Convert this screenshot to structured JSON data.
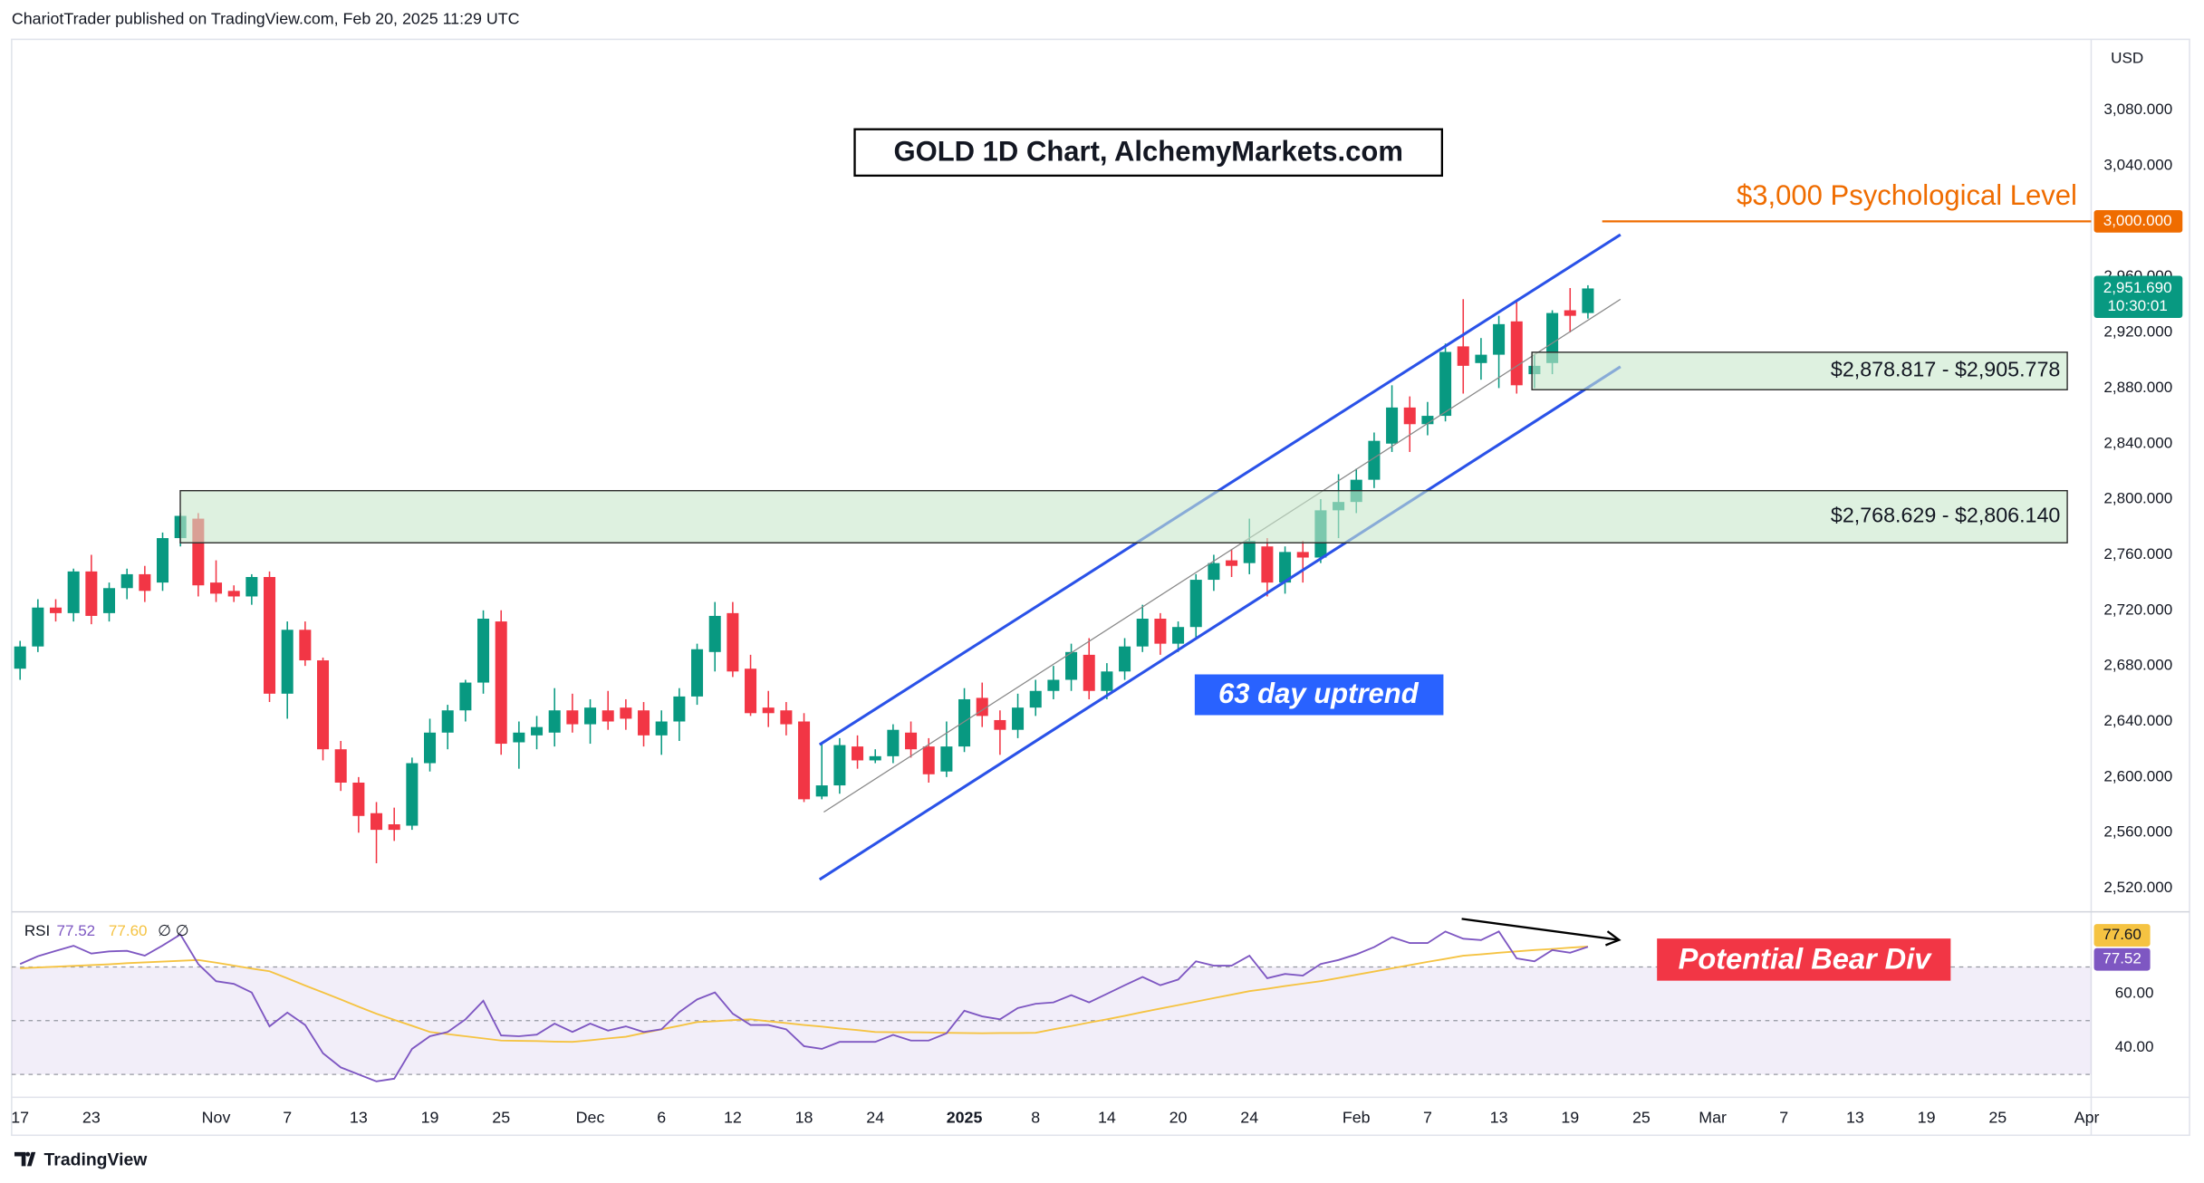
{
  "header": "ChariotTrader published on TradingView.com, Feb 20, 2025 11:29 UTC",
  "footer": "TradingView",
  "chart_data": [
    {
      "type": "candlestick",
      "title": "GOLD 1D Chart, AlchemyMarkets.com",
      "currency": "USD",
      "up_color": "#089981",
      "down_color": "#f23645",
      "categories": [
        "17",
        null,
        null,
        null,
        "23",
        null,
        null,
        null,
        null,
        null,
        null,
        "Nov",
        null,
        null,
        null,
        "7",
        null,
        null,
        null,
        "13",
        null,
        null,
        null,
        "19",
        null,
        null,
        null,
        "25",
        null,
        null,
        null,
        null,
        "Dec",
        null,
        null,
        null,
        "6",
        null,
        null,
        null,
        "12",
        null,
        null,
        null,
        "18",
        null,
        null,
        null,
        "24",
        null,
        null,
        null,
        null,
        "2025",
        null,
        null,
        null,
        "8",
        null,
        null,
        null,
        "14",
        null,
        null,
        null,
        "20",
        null,
        null,
        null,
        "24",
        null,
        null,
        null,
        null,
        null,
        "Feb",
        null,
        null,
        null,
        "7",
        null,
        null,
        null,
        "13",
        null,
        null,
        null,
        "19",
        null,
        null,
        null,
        "25",
        null,
        null,
        null,
        "Mar",
        null,
        null,
        null,
        "7",
        null,
        null,
        null,
        "13",
        null,
        null,
        null,
        "19",
        null,
        null,
        null,
        "25",
        null,
        null,
        null,
        null,
        "Apr"
      ],
      "open": [
        2678,
        2694,
        2722,
        2718,
        2748,
        2718,
        2736,
        2746,
        2740,
        2772,
        2786,
        2740,
        2734,
        2730,
        2744,
        2660,
        2706,
        2684,
        2620,
        2596,
        2574,
        2566,
        2565,
        2610,
        2632,
        2648,
        2668,
        2712,
        2625,
        2630,
        2632,
        2648,
        2638,
        2648,
        2650,
        2648,
        2630,
        2640,
        2658,
        2690,
        2718,
        2678,
        2650,
        2648,
        2640,
        2586,
        2594,
        2622,
        2612,
        2615,
        2632,
        2622,
        2604,
        2622,
        2657,
        2641,
        2634,
        2650,
        2662,
        2670,
        2688,
        2662,
        2676,
        2694,
        2714,
        2696,
        2708,
        2742,
        2756,
        2754,
        2766,
        2740,
        2762,
        2758,
        2792,
        2798,
        2814,
        2840,
        2866,
        2854,
        2860,
        2910,
        2898,
        2904,
        2928,
        2890,
        2898,
        2936,
        2934,
        null,
        null,
        null,
        null,
        null,
        null,
        null,
        null,
        null,
        null,
        null,
        null,
        null,
        null,
        null,
        null,
        null,
        null,
        null,
        null,
        null,
        null,
        null,
        null,
        null,
        null,
        null,
        null
      ],
      "high": [
        2698,
        2728,
        2728,
        2750,
        2760,
        2740,
        2750,
        2752,
        2776,
        2790,
        2790,
        2756,
        2738,
        2746,
        2748,
        2712,
        2712,
        2686,
        2626,
        2600,
        2582,
        2578,
        2614,
        2642,
        2652,
        2670,
        2720,
        2720,
        2640,
        2644,
        2664,
        2660,
        2656,
        2662,
        2656,
        2654,
        2648,
        2664,
        2696,
        2726,
        2726,
        2688,
        2662,
        2654,
        2646,
        2624,
        2628,
        2630,
        2620,
        2638,
        2640,
        2628,
        2640,
        2664,
        2668,
        2648,
        2660,
        2670,
        2680,
        2696,
        2700,
        2682,
        2700,
        2724,
        2718,
        2712,
        2746,
        2760,
        2764,
        2786,
        2772,
        2766,
        2770,
        2800,
        2818,
        2822,
        2848,
        2882,
        2874,
        2870,
        2912,
        2944,
        2916,
        2932,
        2942,
        2904,
        2936,
        2952,
        2954,
        null,
        null,
        null,
        null,
        null,
        null,
        null,
        null,
        null,
        null,
        null,
        null,
        null,
        null,
        null,
        null,
        null,
        null,
        null,
        null,
        null,
        null,
        null,
        null,
        null,
        null,
        null,
        null
      ],
      "low": [
        2670,
        2690,
        2712,
        2712,
        2710,
        2712,
        2728,
        2726,
        2734,
        2766,
        2730,
        2726,
        2726,
        2724,
        2654,
        2642,
        2680,
        2612,
        2590,
        2560,
        2538,
        2554,
        2562,
        2604,
        2620,
        2640,
        2660,
        2616,
        2606,
        2620,
        2622,
        2632,
        2624,
        2634,
        2634,
        2622,
        2616,
        2626,
        2652,
        2676,
        2672,
        2644,
        2636,
        2630,
        2582,
        2584,
        2588,
        2606,
        2610,
        2610,
        2614,
        2596,
        2600,
        2618,
        2636,
        2616,
        2628,
        2644,
        2656,
        2662,
        2656,
        2656,
        2670,
        2690,
        2688,
        2690,
        2700,
        2734,
        2744,
        2746,
        2730,
        2732,
        2740,
        2754,
        2772,
        2790,
        2808,
        2834,
        2834,
        2846,
        2856,
        2876,
        2886,
        2880,
        2876,
        2880,
        2890,
        2920,
        2930,
        null,
        null,
        null,
        null,
        null,
        null,
        null,
        null,
        null,
        null,
        null,
        null,
        null,
        null,
        null,
        null,
        null,
        null,
        null,
        null,
        null,
        null,
        null,
        null,
        null,
        null,
        null,
        null
      ],
      "close": [
        2694,
        2722,
        2718,
        2748,
        2716,
        2736,
        2746,
        2734,
        2772,
        2788,
        2738,
        2732,
        2730,
        2744,
        2660,
        2706,
        2684,
        2620,
        2596,
        2572,
        2562,
        2562,
        2610,
        2632,
        2648,
        2668,
        2714,
        2624,
        2632,
        2636,
        2648,
        2638,
        2650,
        2640,
        2642,
        2630,
        2640,
        2658,
        2692,
        2716,
        2676,
        2646,
        2646,
        2638,
        2584,
        2594,
        2623,
        2612,
        2615,
        2634,
        2620,
        2602,
        2622,
        2656,
        2644,
        2634,
        2650,
        2662,
        2670,
        2690,
        2662,
        2676,
        2694,
        2714,
        2696,
        2708,
        2742,
        2754,
        2752,
        2770,
        2740,
        2762,
        2758,
        2792,
        2798,
        2814,
        2842,
        2866,
        2854,
        2860,
        2906,
        2896,
        2904,
        2926,
        2882,
        2896,
        2934,
        2932,
        2951.69,
        null,
        null,
        null,
        null,
        null,
        null,
        null,
        null,
        null,
        null,
        null,
        null,
        null,
        null,
        null,
        null,
        null,
        null,
        null,
        null,
        null,
        null,
        null,
        null,
        null,
        null,
        null,
        null
      ],
      "ylim": [
        2504,
        3131
      ],
      "yticks": [
        {
          "value": 2520,
          "label": "2,520.000"
        },
        {
          "value": 2560,
          "label": "2,560.000"
        },
        {
          "value": 2600,
          "label": "2,600.000"
        },
        {
          "value": 2640,
          "label": "2,640.000"
        },
        {
          "value": 2680,
          "label": "2,680.000"
        },
        {
          "value": 2720,
          "label": "2,720.000"
        },
        {
          "value": 2760,
          "label": "2,760.000"
        },
        {
          "value": 2800,
          "label": "2,800.000"
        },
        {
          "value": 2840,
          "label": "2,840.000"
        },
        {
          "value": 2880,
          "label": "2,880.000"
        },
        {
          "value": 2920,
          "label": "2,920.000"
        },
        {
          "value": 2960,
          "label": "2,960.000"
        },
        {
          "value": 3040,
          "label": "3,040.000"
        },
        {
          "value": 3080,
          "label": "3,080.000"
        }
      ],
      "grid": false,
      "last_price": {
        "value": 2951.69,
        "label": "2,951.690",
        "countdown": "10:30:01"
      },
      "level": {
        "value": 3000,
        "label": "3,000.000",
        "text": "$3,000 Psychological Level",
        "color": "#ef6c00"
      },
      "zones": [
        {
          "low": 2768.629,
          "high": 2806.14,
          "label": "$2,768.629 - $2,806.140"
        },
        {
          "low": 2878.817,
          "high": 2905.778,
          "label": "$2,878.817 - $2,905.778"
        }
      ],
      "trend_label": "63 day uptrend"
    },
    {
      "type": "line",
      "series": [
        {
          "name": "RSI",
          "color": "#7e57c2",
          "last_label": "77.52",
          "values": [
            71.1,
            74,
            76,
            77.9,
            75,
            75.8,
            76,
            74.2,
            78,
            82.1,
            71.1,
            64.7,
            63.7,
            60.5,
            47.9,
            53,
            48.4,
            37.9,
            32.6,
            30,
            27.4,
            28.4,
            39.5,
            44.2,
            45.8,
            50.5,
            57.4,
            44.5,
            44.2,
            44.8,
            48.9,
            45.8,
            48.9,
            46.3,
            47.9,
            45.8,
            46.8,
            53.2,
            57.9,
            60.5,
            52.6,
            48.4,
            48.4,
            46.8,
            40.5,
            39.5,
            42.1,
            42.1,
            42.1,
            44.7,
            42.6,
            42.6,
            45.3,
            53.7,
            51.6,
            50.5,
            54.7,
            56.3,
            56.8,
            59.5,
            56.8,
            60,
            63.2,
            66.3,
            63.2,
            65.3,
            72.1,
            70.5,
            70.5,
            74.2,
            65.8,
            67.4,
            66.8,
            71.1,
            72.6,
            74.7,
            77.4,
            81.1,
            78.9,
            78.9,
            83.2,
            80.5,
            80,
            83.2,
            73.2,
            72.1,
            76.3,
            75.3,
            77.52,
            null,
            null,
            null,
            null,
            null,
            null,
            null,
            null,
            null,
            null,
            null,
            null,
            null,
            null,
            null,
            null,
            null,
            null,
            null,
            null,
            null,
            null,
            null,
            null,
            null,
            null,
            null,
            null
          ]
        },
        {
          "color": "#f5c342",
          "last_label": "77.60",
          "values": [
            69.5,
            69.8,
            70.1,
            70.4,
            70.7,
            71,
            71.4,
            71.7,
            72,
            72.3,
            72.6,
            71.6,
            70.5,
            69.4,
            68.4,
            65.8,
            63.1,
            60.5,
            57.9,
            55.2,
            52.6,
            50.3,
            48.1,
            45.8,
            45,
            44.2,
            43.4,
            42.6,
            42.5,
            42.4,
            42.2,
            42.1,
            42.7,
            43.4,
            44,
            45.4,
            46.8,
            48.1,
            49.5,
            49.8,
            50.2,
            50.5,
            49.8,
            49.1,
            48.4,
            47.8,
            47.1,
            46.5,
            45.8,
            45.7,
            45.7,
            45.6,
            45.5,
            45.4,
            45.3,
            45.4,
            45.4,
            45.5,
            46.8,
            48,
            49.3,
            50.5,
            51.8,
            53.2,
            54.5,
            55.8,
            57.1,
            58.4,
            59.7,
            61,
            61.9,
            62.9,
            63.8,
            64.7,
            65.9,
            67.1,
            68.3,
            69.5,
            70.7,
            71.9,
            73,
            74.2,
            74.7,
            75.3,
            75.8,
            76.3,
            76.7,
            77.2,
            77.6,
            null,
            null,
            null,
            null,
            null,
            null,
            null,
            null,
            null,
            null,
            null,
            null,
            null,
            null,
            null,
            null,
            null,
            null,
            null,
            null,
            null,
            null,
            null,
            null,
            null,
            null,
            null,
            null
          ]
        }
      ],
      "legend_extra": "∅ ∅",
      "ylim": [
        22,
        90
      ],
      "yticks": [
        {
          "value": 60,
          "label": "60.00"
        },
        {
          "value": 40,
          "label": "40.00"
        }
      ],
      "bands": [
        70,
        50,
        30
      ],
      "annotation": "Potential Bear Div"
    }
  ]
}
